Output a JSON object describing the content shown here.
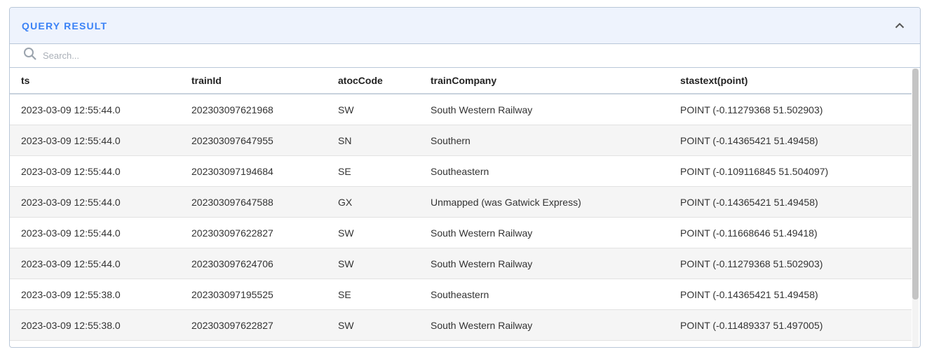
{
  "panel": {
    "title": "QUERY RESULT",
    "collapse_icon": "chevron-up-icon"
  },
  "search": {
    "placeholder": "Search..."
  },
  "table": {
    "columns": [
      "ts",
      "trainId",
      "atocCode",
      "trainCompany",
      "stastext(point)"
    ],
    "rows": [
      [
        "2023-03-09 12:55:44.0",
        "202303097621968",
        "SW",
        "South Western Railway",
        "POINT (-0.11279368 51.502903)"
      ],
      [
        "2023-03-09 12:55:44.0",
        "202303097647955",
        "SN",
        "Southern",
        "POINT (-0.14365421 51.49458)"
      ],
      [
        "2023-03-09 12:55:44.0",
        "202303097194684",
        "SE",
        "Southeastern",
        "POINT (-0.109116845 51.504097)"
      ],
      [
        "2023-03-09 12:55:44.0",
        "202303097647588",
        "GX",
        "Unmapped (was Gatwick Express)",
        "POINT (-0.14365421 51.49458)"
      ],
      [
        "2023-03-09 12:55:44.0",
        "202303097622827",
        "SW",
        "South Western Railway",
        "POINT (-0.11668646 51.49418)"
      ],
      [
        "2023-03-09 12:55:44.0",
        "202303097624706",
        "SW",
        "South Western Railway",
        "POINT (-0.11279368 51.502903)"
      ],
      [
        "2023-03-09 12:55:38.0",
        "202303097195525",
        "SE",
        "Southeastern",
        "POINT (-0.14365421 51.49458)"
      ],
      [
        "2023-03-09 12:55:38.0",
        "202303097622827",
        "SW",
        "South Western Railway",
        "POINT (-0.11489337 51.497005)"
      ],
      [
        "",
        "",
        "",
        "",
        ""
      ]
    ]
  },
  "colors": {
    "accent": "#3b82f6",
    "header_bg": "#eef3fd",
    "border": "#b9c7d8",
    "zebra": "#f5f5f5"
  }
}
